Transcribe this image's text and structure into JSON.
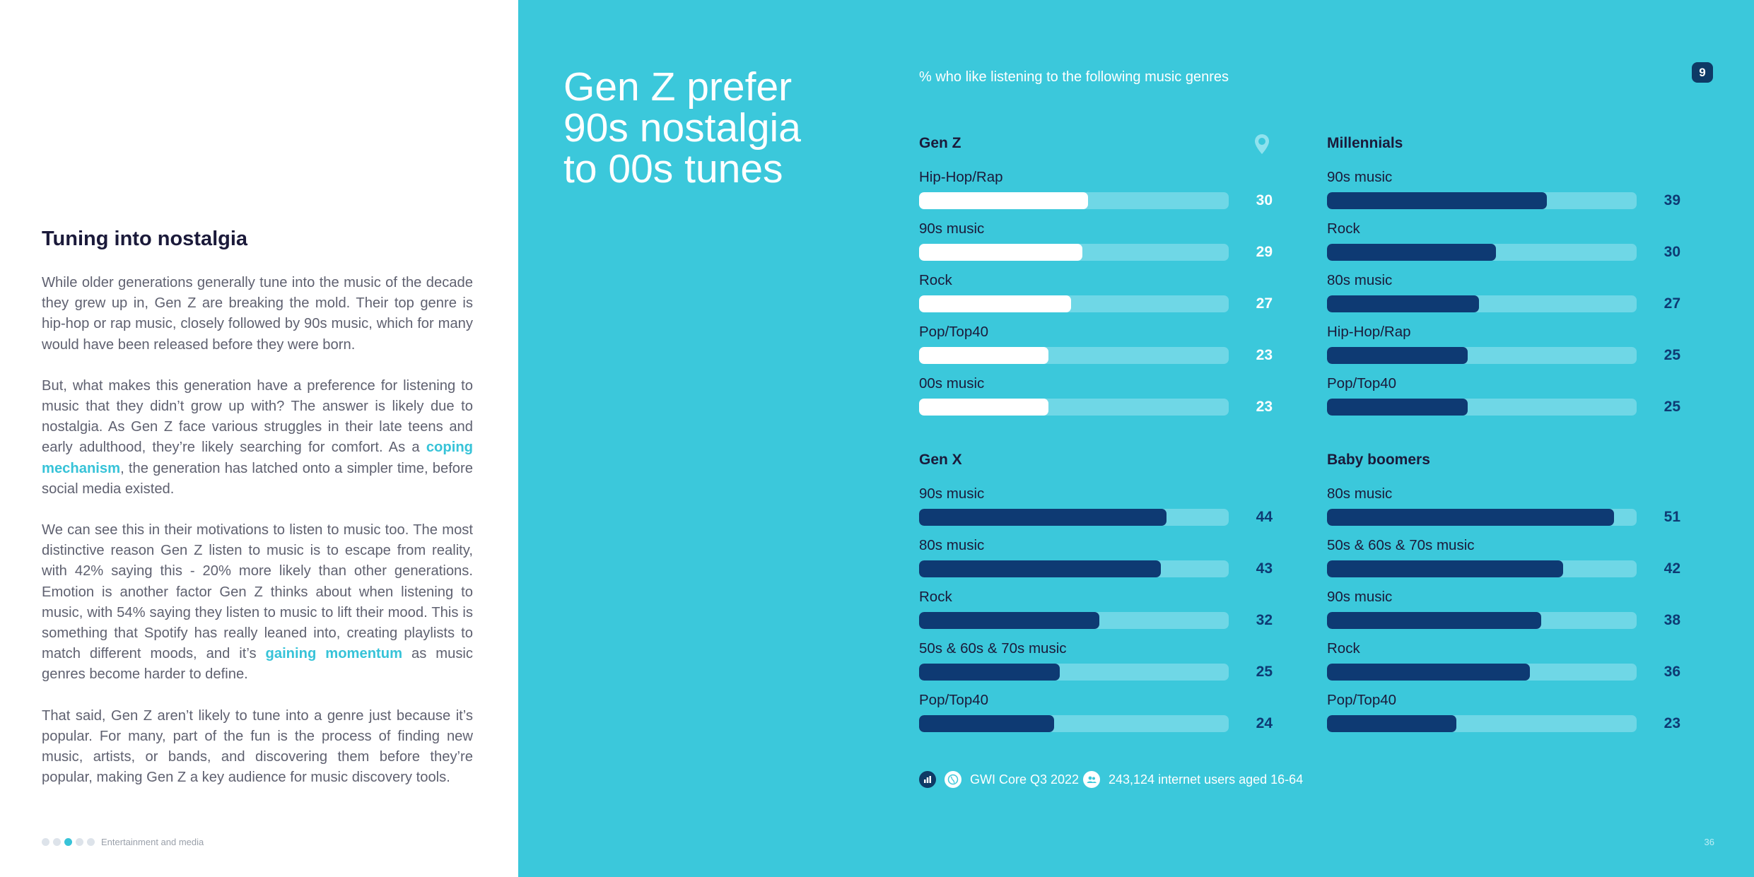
{
  "article": {
    "title": "Tuning into nostalgia",
    "p1": "While older generations generally tune into the music of the decade they grew up in, Gen Z are breaking the mold. Their top genre is hip-hop or rap music, closely followed by 90s music, which for many would have been released before they were born.",
    "p2_before": "But, what makes this generation have a preference for listening to music that they didn’t grow up with? The answer is likely due to nostalgia. As Gen Z face various struggles in their late teens and early adulthood, they’re likely searching for comfort. As a ",
    "p2_link": "coping mechanism",
    "p2_after": ", the generation has latched onto a simpler time, before social media existed.",
    "p3_before": "We can see this in their motivations to listen to music too. The most distinctive reason Gen Z listen to music is to escape from reality, with 42% saying this - 20% more likely than other generations. Emotion is another factor Gen Z thinks about when listening to music, with 54% saying they listen to music to lift their mood. This is something that Spotify has really leaned into, creating playlists to match different moods, and it’s ",
    "p3_link": "gaining momentum",
    "p3_after": " as music genres become harder to define.",
    "p4": "That said, Gen Z aren’t likely to tune into a genre just because it’s popular. For many, part of the fun is the process of finding new music, artists, or bands, and discovering them before they’re popular, making Gen Z a key audience for music discovery tools."
  },
  "footer_left": {
    "section": "Entertainment and media",
    "dots": 5,
    "active_dot": 3
  },
  "hero": {
    "line1": "Gen Z prefer",
    "line2": "90s nostalgia",
    "line3": "to 00s tunes"
  },
  "page_badge": "9",
  "colors": {
    "panel_background": "#3bc8db",
    "bar_track": "#6fd7e6",
    "bar_light": "#ffffff",
    "bar_dark": "#0e3a73",
    "heading": "#1b1a3a",
    "link": "#37c3d8"
  },
  "chart_data": {
    "type": "bar",
    "orientation": "horizontal",
    "title": "% who like listening to the following music genres",
    "xlim": [
      0,
      55
    ],
    "panels": [
      {
        "name": "Gen Z",
        "style": "light",
        "categories": [
          "Hip-Hop/Rap",
          "90s music",
          "Rock",
          "Pop/Top40",
          "00s music"
        ],
        "values": [
          30,
          29,
          27,
          23,
          23
        ]
      },
      {
        "name": "Millennials",
        "style": "dark",
        "categories": [
          "90s music",
          "Rock",
          "80s music",
          "Hip-Hop/Rap",
          "Pop/Top40"
        ],
        "values": [
          39,
          30,
          27,
          25,
          25
        ]
      },
      {
        "name": "Gen X",
        "style": "dark",
        "categories": [
          "90s music",
          "80s music",
          "Rock",
          "50s & 60s & 70s music",
          "Pop/Top40"
        ],
        "values": [
          44,
          43,
          32,
          25,
          24
        ]
      },
      {
        "name": "Baby boomers",
        "style": "dark",
        "categories": [
          "80s music",
          "50s & 60s & 70s music",
          "90s music",
          "Rock",
          "Pop/Top40"
        ],
        "values": [
          51,
          42,
          38,
          36,
          23
        ]
      }
    ]
  },
  "chart_footer": {
    "source": "GWI Core Q3 2022",
    "sample": "243,124 internet users aged 16-64"
  },
  "icons": {
    "chart": "bar-chart-icon",
    "source": "globe-icon",
    "audience": "users-icon",
    "marker": "map-pin-icon"
  },
  "page_number": "36"
}
